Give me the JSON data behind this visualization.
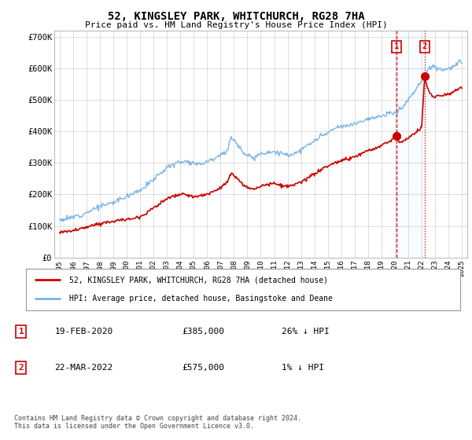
{
  "title": "52, KINGSLEY PARK, WHITCHURCH, RG28 7HA",
  "subtitle": "Price paid vs. HM Land Registry's House Price Index (HPI)",
  "ylabel_ticks": [
    "£0",
    "£100K",
    "£200K",
    "£300K",
    "£400K",
    "£500K",
    "£600K",
    "£700K"
  ],
  "ytick_values": [
    0,
    100000,
    200000,
    300000,
    400000,
    500000,
    600000,
    700000
  ],
  "ylim": [
    0,
    720000
  ],
  "xlim_start": 1994.6,
  "xlim_end": 2025.4,
  "bg_color": "#ffffff",
  "plot_bg_color": "#ffffff",
  "hpi_color": "#7ab4e8",
  "price_color": "#cc0000",
  "dashed_color": "#cc0000",
  "shade_color": "#ddeeff",
  "marker1_x": 2020.12,
  "marker1_y": 385000,
  "marker2_x": 2022.22,
  "marker2_y": 575000,
  "legend_label1": "52, KINGSLEY PARK, WHITCHURCH, RG28 7HA (detached house)",
  "legend_label2": "HPI: Average price, detached house, Basingstoke and Deane",
  "table_row1": [
    "1",
    "19-FEB-2020",
    "£385,000",
    "26% ↓ HPI"
  ],
  "table_row2": [
    "2",
    "22-MAR-2022",
    "£575,000",
    "1% ↓ HPI"
  ],
  "footnote": "Contains HM Land Registry data © Crown copyright and database right 2024.\nThis data is licensed under the Open Government Licence v3.0.",
  "grid_color": "#d0d0d0",
  "hpi_anchors": [
    [
      1995.0,
      120000
    ],
    [
      1995.5,
      122000
    ],
    [
      1996.0,
      128000
    ],
    [
      1996.5,
      135000
    ],
    [
      1997.0,
      143000
    ],
    [
      1997.5,
      153000
    ],
    [
      1998.0,
      162000
    ],
    [
      1998.5,
      168000
    ],
    [
      1999.0,
      175000
    ],
    [
      1999.5,
      185000
    ],
    [
      2000.0,
      195000
    ],
    [
      2000.5,
      205000
    ],
    [
      2001.0,
      215000
    ],
    [
      2001.5,
      228000
    ],
    [
      2002.0,
      248000
    ],
    [
      2002.5,
      268000
    ],
    [
      2003.0,
      285000
    ],
    [
      2003.5,
      295000
    ],
    [
      2004.0,
      305000
    ],
    [
      2004.5,
      305000
    ],
    [
      2005.0,
      300000
    ],
    [
      2005.5,
      298000
    ],
    [
      2006.0,
      305000
    ],
    [
      2006.5,
      315000
    ],
    [
      2007.0,
      328000
    ],
    [
      2007.5,
      335000
    ],
    [
      2007.8,
      385000
    ],
    [
      2008.0,
      375000
    ],
    [
      2008.5,
      345000
    ],
    [
      2009.0,
      320000
    ],
    [
      2009.5,
      318000
    ],
    [
      2010.0,
      330000
    ],
    [
      2010.5,
      335000
    ],
    [
      2011.0,
      335000
    ],
    [
      2011.5,
      330000
    ],
    [
      2012.0,
      325000
    ],
    [
      2012.5,
      330000
    ],
    [
      2013.0,
      340000
    ],
    [
      2013.5,
      355000
    ],
    [
      2014.0,
      370000
    ],
    [
      2014.5,
      385000
    ],
    [
      2015.0,
      395000
    ],
    [
      2015.5,
      408000
    ],
    [
      2016.0,
      415000
    ],
    [
      2016.5,
      418000
    ],
    [
      2017.0,
      425000
    ],
    [
      2017.5,
      435000
    ],
    [
      2018.0,
      440000
    ],
    [
      2018.5,
      445000
    ],
    [
      2019.0,
      448000
    ],
    [
      2019.5,
      455000
    ],
    [
      2020.0,
      460000
    ],
    [
      2020.5,
      475000
    ],
    [
      2021.0,
      500000
    ],
    [
      2021.5,
      530000
    ],
    [
      2022.0,
      560000
    ],
    [
      2022.5,
      600000
    ],
    [
      2022.8,
      610000
    ],
    [
      2023.0,
      605000
    ],
    [
      2023.5,
      595000
    ],
    [
      2024.0,
      600000
    ],
    [
      2024.5,
      610000
    ],
    [
      2025.0,
      620000
    ]
  ],
  "price_anchors": [
    [
      1995.0,
      80000
    ],
    [
      1995.5,
      82000
    ],
    [
      1996.0,
      85000
    ],
    [
      1996.5,
      90000
    ],
    [
      1997.0,
      95000
    ],
    [
      1997.5,
      102000
    ],
    [
      1998.0,
      108000
    ],
    [
      1998.5,
      112000
    ],
    [
      1999.0,
      115000
    ],
    [
      1999.5,
      118000
    ],
    [
      2000.0,
      120000
    ],
    [
      2000.5,
      125000
    ],
    [
      2001.0,
      130000
    ],
    [
      2001.5,
      142000
    ],
    [
      2002.0,
      158000
    ],
    [
      2002.5,
      172000
    ],
    [
      2003.0,
      185000
    ],
    [
      2003.5,
      195000
    ],
    [
      2004.0,
      200000
    ],
    [
      2004.5,
      198000
    ],
    [
      2005.0,
      193000
    ],
    [
      2005.5,
      195000
    ],
    [
      2006.0,
      200000
    ],
    [
      2006.5,
      210000
    ],
    [
      2007.0,
      222000
    ],
    [
      2007.5,
      240000
    ],
    [
      2007.8,
      268000
    ],
    [
      2008.0,
      258000
    ],
    [
      2008.5,
      238000
    ],
    [
      2009.0,
      220000
    ],
    [
      2009.5,
      218000
    ],
    [
      2010.0,
      228000
    ],
    [
      2010.5,
      232000
    ],
    [
      2011.0,
      235000
    ],
    [
      2011.5,
      228000
    ],
    [
      2012.0,
      225000
    ],
    [
      2012.5,
      230000
    ],
    [
      2013.0,
      238000
    ],
    [
      2013.5,
      252000
    ],
    [
      2014.0,
      265000
    ],
    [
      2014.5,
      278000
    ],
    [
      2015.0,
      290000
    ],
    [
      2015.5,
      300000
    ],
    [
      2016.0,
      308000
    ],
    [
      2016.5,
      312000
    ],
    [
      2017.0,
      320000
    ],
    [
      2017.5,
      330000
    ],
    [
      2018.0,
      338000
    ],
    [
      2018.5,
      345000
    ],
    [
      2019.0,
      355000
    ],
    [
      2019.5,
      368000
    ],
    [
      2019.8,
      375000
    ],
    [
      2020.0,
      378000
    ],
    [
      2020.12,
      385000
    ],
    [
      2020.3,
      370000
    ],
    [
      2020.5,
      365000
    ],
    [
      2021.0,
      380000
    ],
    [
      2021.5,
      395000
    ],
    [
      2021.8,
      405000
    ],
    [
      2022.0,
      415000
    ],
    [
      2022.22,
      575000
    ],
    [
      2022.4,
      545000
    ],
    [
      2022.6,
      520000
    ],
    [
      2023.0,
      510000
    ],
    [
      2023.5,
      515000
    ],
    [
      2024.0,
      520000
    ],
    [
      2024.5,
      530000
    ],
    [
      2025.0,
      540000
    ]
  ]
}
